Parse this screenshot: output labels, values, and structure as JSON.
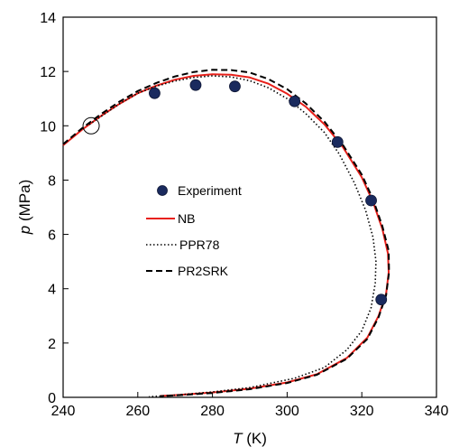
{
  "chart_data": {
    "type": "line",
    "title": "",
    "xlabel": {
      "var": "T",
      "unit": " (K)"
    },
    "ylabel": {
      "var": "p",
      "unit": " (MPa)"
    },
    "xlim": [
      240,
      340
    ],
    "ylim": [
      0,
      14
    ],
    "x_ticks": [
      240,
      260,
      280,
      300,
      320,
      340
    ],
    "y_ticks": [
      0,
      2,
      4,
      6,
      8,
      10,
      12,
      14
    ],
    "grid": false,
    "legend_position": "center-left",
    "series": [
      {
        "name": "Experiment",
        "style": "markers",
        "color": "#1a2a5e",
        "points": [
          [
            264.5,
            11.2
          ],
          [
            275.5,
            11.5
          ],
          [
            286,
            11.45
          ],
          [
            302,
            10.9
          ],
          [
            313.5,
            9.4
          ],
          [
            322.5,
            7.25
          ],
          [
            325.2,
            3.6
          ]
        ]
      },
      {
        "name": "NB",
        "style": "solid",
        "color": "#e8201a",
        "points": [
          [
            240,
            9.28
          ],
          [
            245,
            9.85
          ],
          [
            250,
            10.35
          ],
          [
            255,
            10.8
          ],
          [
            260,
            11.2
          ],
          [
            265,
            11.48
          ],
          [
            270,
            11.7
          ],
          [
            275,
            11.84
          ],
          [
            280,
            11.9
          ],
          [
            285,
            11.88
          ],
          [
            290,
            11.78
          ],
          [
            295,
            11.55
          ],
          [
            300,
            11.18
          ],
          [
            305,
            10.7
          ],
          [
            310,
            10.05
          ],
          [
            315,
            9.2
          ],
          [
            320,
            8.1
          ],
          [
            323,
            7.2
          ],
          [
            325.5,
            6.2
          ],
          [
            327,
            5.3
          ],
          [
            327.2,
            4.6
          ],
          [
            326.5,
            3.8
          ],
          [
            324.5,
            3.0
          ],
          [
            321.5,
            2.2
          ],
          [
            316,
            1.45
          ],
          [
            308,
            0.85
          ],
          [
            300,
            0.55
          ],
          [
            290,
            0.32
          ],
          [
            280,
            0.18
          ],
          [
            270,
            0.08
          ],
          [
            266,
            0.05
          ]
        ]
      },
      {
        "name": "PPR78",
        "style": "dotted",
        "color": "#000000",
        "points": [
          [
            247,
            10.05
          ],
          [
            255,
            10.8
          ],
          [
            260,
            11.2
          ],
          [
            265,
            11.46
          ],
          [
            270,
            11.65
          ],
          [
            275,
            11.78
          ],
          [
            280,
            11.84
          ],
          [
            285,
            11.8
          ],
          [
            290,
            11.66
          ],
          [
            295,
            11.4
          ],
          [
            300,
            11.0
          ],
          [
            305,
            10.45
          ],
          [
            310,
            9.75
          ],
          [
            314,
            8.95
          ],
          [
            318,
            7.9
          ],
          [
            321,
            6.9
          ],
          [
            323,
            5.9
          ],
          [
            323.8,
            5.0
          ],
          [
            323.6,
            4.2
          ],
          [
            322.5,
            3.3
          ],
          [
            320,
            2.45
          ],
          [
            316,
            1.75
          ],
          [
            310,
            1.1
          ],
          [
            302,
            0.7
          ],
          [
            290,
            0.36
          ],
          [
            280,
            0.2
          ],
          [
            270,
            0.08
          ],
          [
            263,
            0.02
          ]
        ]
      },
      {
        "name": "PR2SRK",
        "style": "dashed",
        "color": "#000000",
        "points": [
          [
            240,
            9.32
          ],
          [
            245,
            9.9
          ],
          [
            250,
            10.42
          ],
          [
            255,
            10.88
          ],
          [
            260,
            11.28
          ],
          [
            265,
            11.58
          ],
          [
            270,
            11.82
          ],
          [
            275,
            11.98
          ],
          [
            280,
            12.06
          ],
          [
            285,
            12.05
          ],
          [
            290,
            11.96
          ],
          [
            295,
            11.72
          ],
          [
            300,
            11.35
          ],
          [
            305,
            10.82
          ],
          [
            310,
            10.15
          ],
          [
            315,
            9.28
          ],
          [
            320,
            8.2
          ],
          [
            323,
            7.3
          ],
          [
            325.5,
            6.3
          ],
          [
            327.2,
            5.4
          ],
          [
            327.3,
            4.6
          ],
          [
            326.5,
            3.75
          ],
          [
            324.5,
            2.95
          ],
          [
            321.5,
            2.15
          ],
          [
            316,
            1.42
          ],
          [
            308,
            0.83
          ],
          [
            300,
            0.53
          ],
          [
            290,
            0.3
          ],
          [
            280,
            0.16
          ],
          [
            270,
            0.07
          ],
          [
            266,
            0.04
          ]
        ]
      }
    ],
    "annotations": [
      {
        "type": "open-circle",
        "x": 247.5,
        "y": 10.0
      }
    ]
  }
}
